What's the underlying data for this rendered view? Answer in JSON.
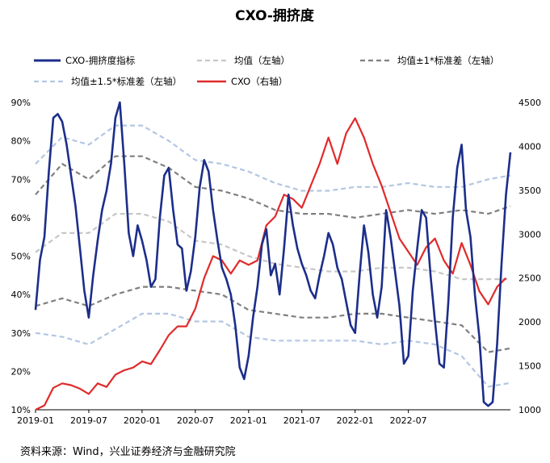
{
  "chart_data": {
    "type": "line",
    "title": "CXO-拥挤度",
    "source": "资料来源：Wind，兴业证券经济与金融研究院",
    "x_ticks": [
      "2019-01",
      "2019-07",
      "2020-01",
      "2020-07",
      "2021-01",
      "2021-07",
      "2022-01",
      "2022-07"
    ],
    "x_range": [
      "2019-01-01",
      "2022-11-30"
    ],
    "y_left": {
      "ticks": [
        "90%",
        "80%",
        "70%",
        "60%",
        "50%",
        "40%",
        "30%",
        "20%",
        "10%"
      ],
      "range": [
        10,
        90
      ]
    },
    "y_right": {
      "ticks": [
        "4500",
        "4000",
        "3500",
        "3000",
        "2500",
        "2000",
        "1500",
        "1000"
      ],
      "range": [
        1000,
        4500
      ]
    },
    "legend": {
      "crowding": "CXO-拥挤度指标",
      "mean": "均值（左轴）",
      "sd1": "均值±1*标准差（左轴）",
      "sd15": "均值±1.5*标准差（左轴）",
      "cxo": "CXO（右轴）"
    },
    "colors": {
      "crowding": "#1c2e8a",
      "mean": "#c6c6c6",
      "sd1": "#7f7f7f",
      "sd15": "#b3c6e3",
      "cxo": "#e02a2a"
    },
    "series": [
      {
        "key": "crowding",
        "axis": "left",
        "points": [
          [
            0,
            36
          ],
          [
            0.5,
            49
          ],
          [
            1,
            55
          ],
          [
            1.5,
            72
          ],
          [
            2,
            86
          ],
          [
            2.5,
            87
          ],
          [
            3,
            85
          ],
          [
            3.5,
            79
          ],
          [
            4,
            71
          ],
          [
            4.5,
            63
          ],
          [
            5,
            52
          ],
          [
            5.5,
            41
          ],
          [
            6,
            34
          ],
          [
            6.5,
            45
          ],
          [
            7,
            54
          ],
          [
            7.5,
            62
          ],
          [
            8,
            67
          ],
          [
            8.5,
            74
          ],
          [
            9,
            86
          ],
          [
            9.5,
            90
          ],
          [
            10,
            74
          ],
          [
            10.5,
            56
          ],
          [
            11,
            50
          ],
          [
            11.5,
            58
          ],
          [
            12,
            54
          ],
          [
            12.5,
            49
          ],
          [
            13,
            42
          ],
          [
            13.5,
            44
          ],
          [
            14,
            60
          ],
          [
            14.5,
            71
          ],
          [
            15,
            73
          ],
          [
            15.5,
            62
          ],
          [
            16,
            53
          ],
          [
            16.5,
            52
          ],
          [
            17,
            41
          ],
          [
            17.5,
            46
          ],
          [
            18,
            55
          ],
          [
            18.5,
            68
          ],
          [
            19,
            75
          ],
          [
            19.5,
            72
          ],
          [
            20,
            62
          ],
          [
            20.5,
            54
          ],
          [
            21,
            47
          ],
          [
            21.5,
            44
          ],
          [
            22,
            40
          ],
          [
            22.5,
            32
          ],
          [
            23,
            21
          ],
          [
            23.5,
            18
          ],
          [
            24,
            24
          ],
          [
            24.5,
            34
          ],
          [
            25,
            42
          ],
          [
            25.5,
            53
          ],
          [
            26,
            57
          ],
          [
            26.5,
            45
          ],
          [
            27,
            48
          ],
          [
            27.5,
            40
          ],
          [
            28,
            52
          ],
          [
            28.5,
            66
          ],
          [
            29,
            58
          ],
          [
            29.5,
            52
          ],
          [
            30,
            48
          ],
          [
            30.5,
            45
          ],
          [
            31,
            41
          ],
          [
            31.5,
            39
          ],
          [
            32,
            45
          ],
          [
            32.5,
            50
          ],
          [
            33,
            56
          ],
          [
            33.5,
            53
          ],
          [
            34,
            47
          ],
          [
            34.5,
            44
          ],
          [
            35,
            38
          ],
          [
            35.5,
            32
          ],
          [
            36,
            30
          ],
          [
            36.5,
            45
          ],
          [
            37,
            58
          ],
          [
            37.5,
            51
          ],
          [
            38,
            40
          ],
          [
            38.5,
            34
          ],
          [
            39,
            42
          ],
          [
            39.5,
            62
          ],
          [
            40,
            55
          ],
          [
            40.5,
            46
          ],
          [
            41,
            37
          ],
          [
            41.5,
            22
          ],
          [
            42,
            24
          ],
          [
            42.5,
            41
          ],
          [
            43,
            52
          ],
          [
            43.5,
            62
          ],
          [
            44,
            60
          ],
          [
            44.5,
            45
          ],
          [
            45,
            33
          ],
          [
            45.5,
            22
          ],
          [
            46,
            21
          ],
          [
            46.5,
            38
          ],
          [
            47,
            60
          ],
          [
            47.5,
            73
          ],
          [
            48,
            79
          ],
          [
            48.5,
            62
          ],
          [
            49,
            55
          ],
          [
            49.5,
            40
          ],
          [
            50,
            29
          ],
          [
            50.5,
            12
          ],
          [
            51,
            11
          ],
          [
            51.5,
            12
          ],
          [
            52,
            27
          ],
          [
            52.5,
            48
          ],
          [
            53,
            66
          ],
          [
            53.5,
            77
          ]
        ]
      },
      {
        "key": "mean",
        "axis": "left",
        "points": [
          [
            0,
            51
          ],
          [
            3,
            56
          ],
          [
            6,
            56
          ],
          [
            9,
            61
          ],
          [
            12,
            61
          ],
          [
            15,
            59
          ],
          [
            18,
            54
          ],
          [
            21,
            53
          ],
          [
            24,
            50
          ],
          [
            27,
            48
          ],
          [
            30,
            47
          ],
          [
            33,
            46
          ],
          [
            36,
            46
          ],
          [
            39,
            47
          ],
          [
            42,
            47
          ],
          [
            45,
            46
          ],
          [
            48,
            44
          ],
          [
            51,
            44
          ],
          [
            53.5,
            44
          ]
        ]
      },
      {
        "key": "sd1_upper",
        "axis": "left",
        "points": [
          [
            0,
            66
          ],
          [
            3,
            74
          ],
          [
            6,
            70
          ],
          [
            9,
            76
          ],
          [
            12,
            76
          ],
          [
            15,
            73
          ],
          [
            18,
            68
          ],
          [
            21,
            67
          ],
          [
            24,
            65
          ],
          [
            27,
            62
          ],
          [
            30,
            61
          ],
          [
            33,
            61
          ],
          [
            36,
            60
          ],
          [
            39,
            61
          ],
          [
            42,
            62
          ],
          [
            45,
            61
          ],
          [
            48,
            62
          ],
          [
            51,
            61
          ],
          [
            53.5,
            63
          ]
        ]
      },
      {
        "key": "sd1_lower",
        "axis": "left",
        "points": [
          [
            0,
            37
          ],
          [
            3,
            39
          ],
          [
            6,
            37
          ],
          [
            9,
            40
          ],
          [
            12,
            42
          ],
          [
            15,
            42
          ],
          [
            18,
            41
          ],
          [
            21,
            40
          ],
          [
            24,
            36
          ],
          [
            27,
            35
          ],
          [
            30,
            34
          ],
          [
            33,
            34
          ],
          [
            36,
            35
          ],
          [
            39,
            35
          ],
          [
            42,
            34
          ],
          [
            45,
            33
          ],
          [
            48,
            32
          ],
          [
            51,
            25
          ],
          [
            53.5,
            26
          ]
        ]
      },
      {
        "key": "sd15_upper",
        "axis": "left",
        "points": [
          [
            0,
            74
          ],
          [
            3,
            81
          ],
          [
            6,
            79
          ],
          [
            9,
            84
          ],
          [
            12,
            84
          ],
          [
            15,
            80
          ],
          [
            18,
            75
          ],
          [
            21,
            74
          ],
          [
            24,
            72
          ],
          [
            27,
            69
          ],
          [
            30,
            67
          ],
          [
            33,
            67
          ],
          [
            36,
            68
          ],
          [
            39,
            68
          ],
          [
            42,
            69
          ],
          [
            45,
            68
          ],
          [
            48,
            68
          ],
          [
            51,
            70
          ],
          [
            53.5,
            71
          ]
        ]
      },
      {
        "key": "sd15_lower",
        "axis": "left",
        "points": [
          [
            0,
            30
          ],
          [
            3,
            29
          ],
          [
            6,
            27
          ],
          [
            9,
            31
          ],
          [
            12,
            35
          ],
          [
            15,
            35
          ],
          [
            18,
            33
          ],
          [
            21,
            33
          ],
          [
            24,
            29
          ],
          [
            27,
            28
          ],
          [
            30,
            28
          ],
          [
            33,
            28
          ],
          [
            36,
            28
          ],
          [
            39,
            27
          ],
          [
            42,
            28
          ],
          [
            45,
            27
          ],
          [
            48,
            24
          ],
          [
            51,
            16
          ],
          [
            53.5,
            17
          ]
        ]
      },
      {
        "key": "cxo",
        "axis": "right",
        "points": [
          [
            0,
            1000
          ],
          [
            1,
            1050
          ],
          [
            2,
            1250
          ],
          [
            3,
            1300
          ],
          [
            4,
            1280
          ],
          [
            5,
            1240
          ],
          [
            6,
            1180
          ],
          [
            7,
            1300
          ],
          [
            8,
            1260
          ],
          [
            9,
            1400
          ],
          [
            10,
            1450
          ],
          [
            11,
            1480
          ],
          [
            12,
            1550
          ],
          [
            13,
            1520
          ],
          [
            14,
            1680
          ],
          [
            15,
            1850
          ],
          [
            16,
            1950
          ],
          [
            17,
            1950
          ],
          [
            18,
            2150
          ],
          [
            19,
            2500
          ],
          [
            20,
            2750
          ],
          [
            21,
            2700
          ],
          [
            22,
            2550
          ],
          [
            23,
            2700
          ],
          [
            24,
            2650
          ],
          [
            25,
            2700
          ],
          [
            26,
            3100
          ],
          [
            27,
            3200
          ],
          [
            28,
            3450
          ],
          [
            29,
            3400
          ],
          [
            30,
            3300
          ],
          [
            31,
            3550
          ],
          [
            32,
            3800
          ],
          [
            33,
            4100
          ],
          [
            34,
            3800
          ],
          [
            35,
            4150
          ],
          [
            36,
            4320
          ],
          [
            37,
            4100
          ],
          [
            38,
            3800
          ],
          [
            39,
            3550
          ],
          [
            40,
            3250
          ],
          [
            41,
            2950
          ],
          [
            42,
            2800
          ],
          [
            43,
            2650
          ],
          [
            44,
            2850
          ],
          [
            45,
            2950
          ],
          [
            46,
            2700
          ],
          [
            47,
            2550
          ],
          [
            48,
            2900
          ],
          [
            49,
            2650
          ],
          [
            50,
            2350
          ],
          [
            51,
            2200
          ],
          [
            52,
            2400
          ],
          [
            53,
            2500
          ]
        ]
      }
    ]
  }
}
